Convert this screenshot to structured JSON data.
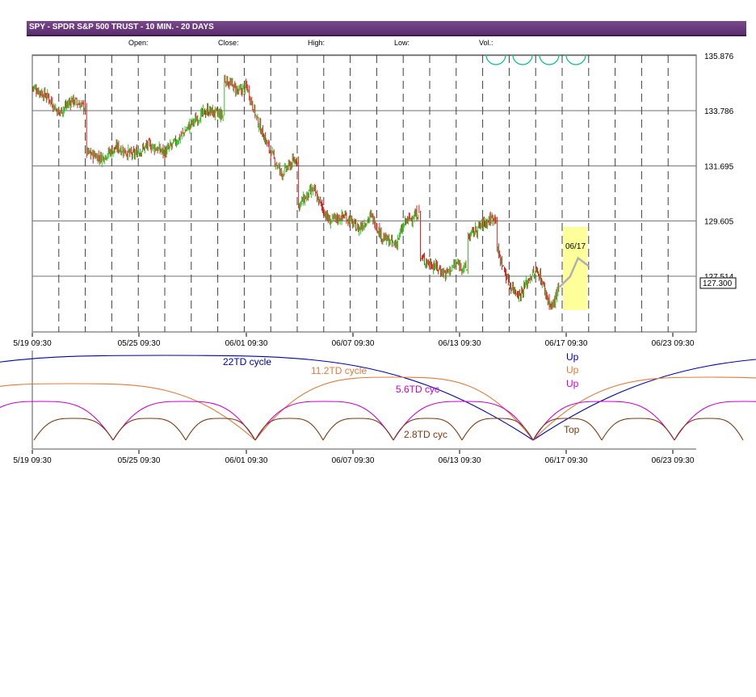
{
  "header": {
    "title": "SPY - SPDR S&P 500 TRUST - 10 MIN. - 20 DAYS",
    "fields": [
      "Open:",
      "Close:",
      "High:",
      "Low:",
      "Vol.:"
    ]
  },
  "colors": {
    "title_bar": "#5b2c6f",
    "up_candle": "#22cc22",
    "down_candle": "#dd2222",
    "cycle_22": "#0000aa",
    "cycle_11": "#e07b3c",
    "cycle_5": "#cc00cc",
    "cycle_2": "#7a3a10",
    "projection_box": "#ffff99",
    "green_marks": "#00c080"
  },
  "chart_data": [
    {
      "type": "line",
      "title": "SPY - SPDR S&P 500 TRUST - 10 MIN. - 20 DAYS",
      "series_kind": "candlestick (10 min bars)",
      "y_ticks": [
        "135.876",
        "133.786",
        "131.695",
        "129.605",
        "127.514"
      ],
      "y_values": [
        135.876,
        133.786,
        131.695,
        129.605,
        127.514
      ],
      "ylim": [
        125.4,
        135.9
      ],
      "last_price_label": "127.300",
      "last_price": 127.3,
      "x_tick_labels": [
        "5/19 09:30",
        "05/25 09:30",
        "06/01 09:30",
        "06/07 09:30",
        "06/13 09:30",
        "06/17 09:30",
        "06/23 09:30"
      ],
      "projection_label": "06/17",
      "close_path": [
        {
          "x": 0.0,
          "y": 134.7
        },
        {
          "x": 0.6,
          "y": 134.3
        },
        {
          "x": 1.0,
          "y": 133.7
        },
        {
          "x": 1.5,
          "y": 134.2
        },
        {
          "x": 2.0,
          "y": 133.9
        },
        {
          "x": 2.05,
          "y": 132.2
        },
        {
          "x": 2.6,
          "y": 132.0
        },
        {
          "x": 3.2,
          "y": 132.4
        },
        {
          "x": 3.8,
          "y": 132.1
        },
        {
          "x": 4.4,
          "y": 132.5
        },
        {
          "x": 5.0,
          "y": 132.2
        },
        {
          "x": 5.5,
          "y": 132.7
        },
        {
          "x": 6.0,
          "y": 133.3
        },
        {
          "x": 6.6,
          "y": 133.8
        },
        {
          "x": 7.2,
          "y": 133.6
        },
        {
          "x": 7.25,
          "y": 135.0
        },
        {
          "x": 7.8,
          "y": 134.5
        },
        {
          "x": 8.1,
          "y": 134.7
        },
        {
          "x": 8.5,
          "y": 133.4
        },
        {
          "x": 9.0,
          "y": 132.2
        },
        {
          "x": 9.4,
          "y": 131.4
        },
        {
          "x": 10.0,
          "y": 132.0
        },
        {
          "x": 10.05,
          "y": 130.2
        },
        {
          "x": 10.6,
          "y": 130.8
        },
        {
          "x": 11.2,
          "y": 129.6
        },
        {
          "x": 11.8,
          "y": 129.8
        },
        {
          "x": 12.3,
          "y": 129.3
        },
        {
          "x": 12.8,
          "y": 129.8
        },
        {
          "x": 13.2,
          "y": 129.0
        },
        {
          "x": 13.7,
          "y": 128.7
        },
        {
          "x": 14.1,
          "y": 129.6
        },
        {
          "x": 14.6,
          "y": 129.9
        },
        {
          "x": 14.65,
          "y": 128.2
        },
        {
          "x": 15.2,
          "y": 127.9
        },
        {
          "x": 15.6,
          "y": 127.6
        },
        {
          "x": 16.0,
          "y": 128.0
        },
        {
          "x": 16.4,
          "y": 127.8
        },
        {
          "x": 16.45,
          "y": 129.0
        },
        {
          "x": 17.0,
          "y": 129.5
        },
        {
          "x": 17.5,
          "y": 129.8
        },
        {
          "x": 17.55,
          "y": 128.5
        },
        {
          "x": 18.0,
          "y": 127.2
        },
        {
          "x": 18.4,
          "y": 126.8
        },
        {
          "x": 18.8,
          "y": 127.5
        },
        {
          "x": 19.1,
          "y": 127.7
        },
        {
          "x": 19.4,
          "y": 126.8
        },
        {
          "x": 19.6,
          "y": 126.3
        },
        {
          "x": 19.9,
          "y": 127.1
        }
      ],
      "projection_path": [
        {
          "x": 19.9,
          "y": 127.1
        },
        {
          "x": 20.3,
          "y": 127.5
        },
        {
          "x": 20.6,
          "y": 128.2
        },
        {
          "x": 21.0,
          "y": 127.9
        }
      ]
    },
    {
      "type": "line",
      "title": "",
      "series": [
        {
          "name": "22TD cycle",
          "status": "Up"
        },
        {
          "name": "11.2TD cycle",
          "status": "Up"
        },
        {
          "name": "5.6TD cyc",
          "status": "Up"
        },
        {
          "name": "2.8TD cyc",
          "status": "Top"
        }
      ],
      "x_tick_labels": [
        "5/19 09:30",
        "05/25 09:30",
        "06/01 09:30",
        "06/07 09:30",
        "06/13 09:30",
        "06/17 09:30",
        "06/23 09:30"
      ]
    }
  ]
}
